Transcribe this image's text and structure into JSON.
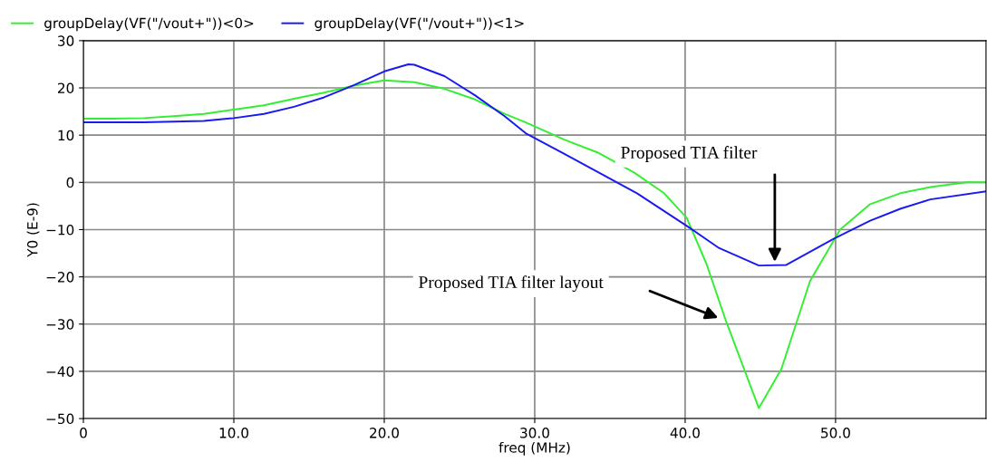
{
  "chart_data": {
    "type": "line",
    "xlabel": "freq (MHz)",
    "ylabel": "Y0 (E-9)",
    "xlim": [
      0,
      60
    ],
    "xticks": [
      0,
      {
        "value": 10,
        "label": "10.0"
      },
      {
        "value": 20,
        "label": "20.0"
      },
      {
        "value": 30,
        "label": "30.0"
      },
      {
        "value": 40,
        "label": "40.0"
      },
      {
        "value": 50,
        "label": "50.0"
      }
    ],
    "ylim": [
      -50,
      30
    ],
    "yticks": [
      30,
      20,
      10,
      0,
      {
        "value": -10,
        "label": "−10"
      },
      {
        "value": -20,
        "label": "−20"
      },
      {
        "value": -30,
        "label": "−30"
      },
      {
        "value": -40,
        "label": "−40"
      },
      {
        "value": -50,
        "label": "−50"
      }
    ],
    "grid": true,
    "legend": "top left",
    "series": [
      {
        "name": "groupDelay(VF(\"/vout+\"))<0>",
        "color": "#33ee33",
        "x": [
          0,
          2,
          4,
          6,
          8,
          10,
          12,
          14,
          16,
          18,
          20,
          22,
          24,
          26,
          28,
          29.4,
          32,
          34.2,
          36.6,
          38.6,
          40.1,
          41.4,
          42.7,
          44.9,
          46.4,
          48.3,
          50.3,
          52.3,
          54.3,
          56.3,
          58.7,
          60
        ],
        "values": [
          13.5,
          13.5,
          13.6,
          14,
          14.5,
          15.4,
          16.3,
          17.7,
          19,
          20.5,
          21.6,
          21.2,
          19.8,
          17.6,
          14.5,
          12.7,
          9,
          6.3,
          2.1,
          -2.3,
          -7.5,
          -17.1,
          -29.2,
          -47.8,
          -39.5,
          -20.9,
          -10,
          -4.6,
          -2.3,
          -1,
          0,
          0
        ]
      },
      {
        "name": "groupDelay(VF(\"/vout+\"))<1>",
        "color": "#1a1aee",
        "x": [
          0,
          4,
          8,
          10,
          12,
          14,
          16,
          18,
          20,
          21.6,
          22,
          24,
          26,
          28,
          29.4,
          32,
          36.8,
          40.2,
          42.2,
          44.9,
          46.7,
          49.9,
          52.3,
          54.3,
          56.3,
          60
        ],
        "values": [
          12.7,
          12.7,
          13,
          13.6,
          14.5,
          16,
          18,
          20.6,
          23.5,
          25,
          24.9,
          22.5,
          18.5,
          14,
          10.4,
          6,
          -2.3,
          -9.4,
          -13.8,
          -17.6,
          -17.5,
          -11.9,
          -8.1,
          -5.6,
          -3.6,
          -1.9
        ]
      }
    ],
    "annotations": [
      "Proposed TIA filter",
      "Proposed TIA filter layout"
    ]
  }
}
